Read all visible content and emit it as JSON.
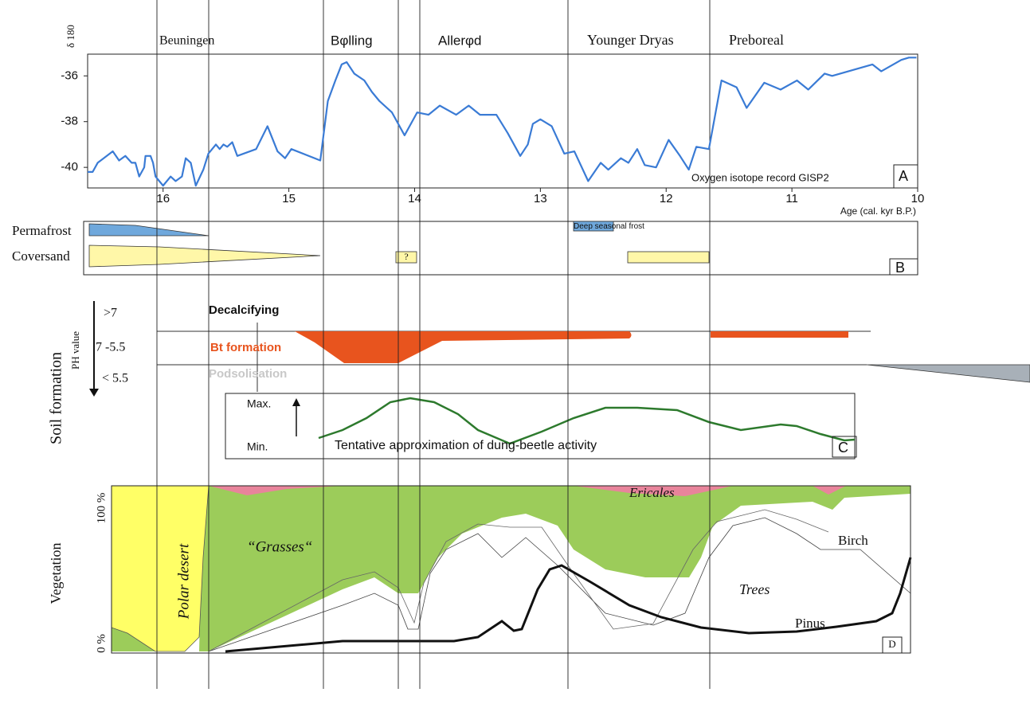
{
  "chart_data": {
    "type": "line",
    "y_label": "δ 180",
    "x_label": "Age (cal. kyr B.P.)",
    "annotation": "Oxygen isotope record GISP2",
    "panel": "A",
    "x": [
      16.6,
      16.56,
      16.52,
      16.4,
      16.35,
      16.3,
      16.25,
      16.22,
      16.19,
      16.15,
      16.14,
      16.1,
      16.08,
      16.06,
      16.0,
      15.94,
      15.9,
      15.85,
      15.82,
      15.78,
      15.74,
      15.68,
      15.64,
      15.58,
      15.55,
      15.52,
      15.49,
      15.45,
      15.41,
      15.26,
      15.17,
      15.09,
      15.03,
      14.98,
      14.75,
      14.69,
      14.63,
      14.58,
      14.54,
      14.48,
      14.4,
      14.34,
      14.28,
      14.18,
      14.08,
      14.01,
      13.98,
      13.89,
      13.8,
      13.67,
      13.57,
      13.48,
      13.35,
      13.26,
      13.16,
      13.1,
      13.06,
      13.0,
      12.91,
      12.81,
      12.73,
      12.62,
      12.52,
      12.46,
      12.36,
      12.3,
      12.23,
      12.17,
      12.08,
      11.98,
      11.89,
      11.82,
      11.76,
      11.66,
      11.56,
      11.44,
      11.36,
      11.22,
      11.09,
      10.96,
      10.87,
      10.74,
      10.68,
      10.36,
      10.29,
      10.13,
      10.07,
      10.01
    ],
    "series": [
      {
        "name": "GISP2",
        "color": "#3a7bd5",
        "values": [
          -40.2,
          -40.2,
          -39.8,
          -39.3,
          -39.7,
          -39.5,
          -39.8,
          -39.8,
          -40.4,
          -40.0,
          -39.5,
          -39.5,
          -39.8,
          -40.4,
          -40.8,
          -40.4,
          -40.6,
          -40.4,
          -39.6,
          -39.8,
          -40.8,
          -40.1,
          -39.4,
          -39.0,
          -39.2,
          -39.0,
          -39.1,
          -38.9,
          -39.5,
          -39.2,
          -38.2,
          -39.3,
          -39.6,
          -39.2,
          -39.7,
          -37.1,
          -36.2,
          -35.5,
          -35.4,
          -35.9,
          -36.2,
          -36.7,
          -37.1,
          -37.6,
          -38.6,
          -37.9,
          -37.6,
          -37.7,
          -37.3,
          -37.7,
          -37.3,
          -37.7,
          -37.7,
          -38.5,
          -39.5,
          -39.0,
          -38.1,
          -37.9,
          -38.2,
          -39.4,
          -39.3,
          -40.6,
          -39.8,
          -40.1,
          -39.6,
          -39.8,
          -39.2,
          -39.9,
          -40.0,
          -38.8,
          -39.5,
          -40.1,
          -39.1,
          -39.2,
          -36.2,
          -36.5,
          -37.4,
          -36.3,
          -36.6,
          -36.2,
          -36.6,
          -35.9,
          -36.0,
          -35.5,
          -35.8,
          -35.3,
          -35.2,
          -35.2
        ]
      }
    ],
    "xlim": [
      16.6,
      10
    ],
    "ylim": [
      -40.9,
      -35.05
    ],
    "xticks": [
      16,
      15,
      14,
      13,
      12,
      11,
      10
    ],
    "yticks": [
      -40,
      -38,
      -36
    ]
  },
  "periods": [
    "Beuningen",
    "Bφlling",
    "Allerφd",
    "Younger Dryas",
    "Preboreal"
  ],
  "panel_b": {
    "permafrost": "Permafrost",
    "coversand": "Coversand",
    "question": "?",
    "frost": "Deep seasonal frost",
    "panel": "B"
  },
  "panel_c": {
    "title": "Soil formation",
    "ph": "PH value",
    "levels": [
      ">7",
      "7 -5.5",
      "< 5.5"
    ],
    "processes": [
      "Decalcifying",
      "Bt formation",
      "Podsolisation"
    ],
    "max": "Max.",
    "min": "Min.",
    "beetle": "Tentative approximation of dung-beetle activity",
    "panel": "C"
  },
  "panel_d": {
    "title": "Vegetation",
    "top": "100 %",
    "bottom": "0 %",
    "polar": "Polar desert",
    "grasses": "“Grasses“",
    "ericales": "Ericales",
    "trees": "Trees",
    "birch": "Birch",
    "pinus": "Pinus",
    "panel": "D"
  }
}
